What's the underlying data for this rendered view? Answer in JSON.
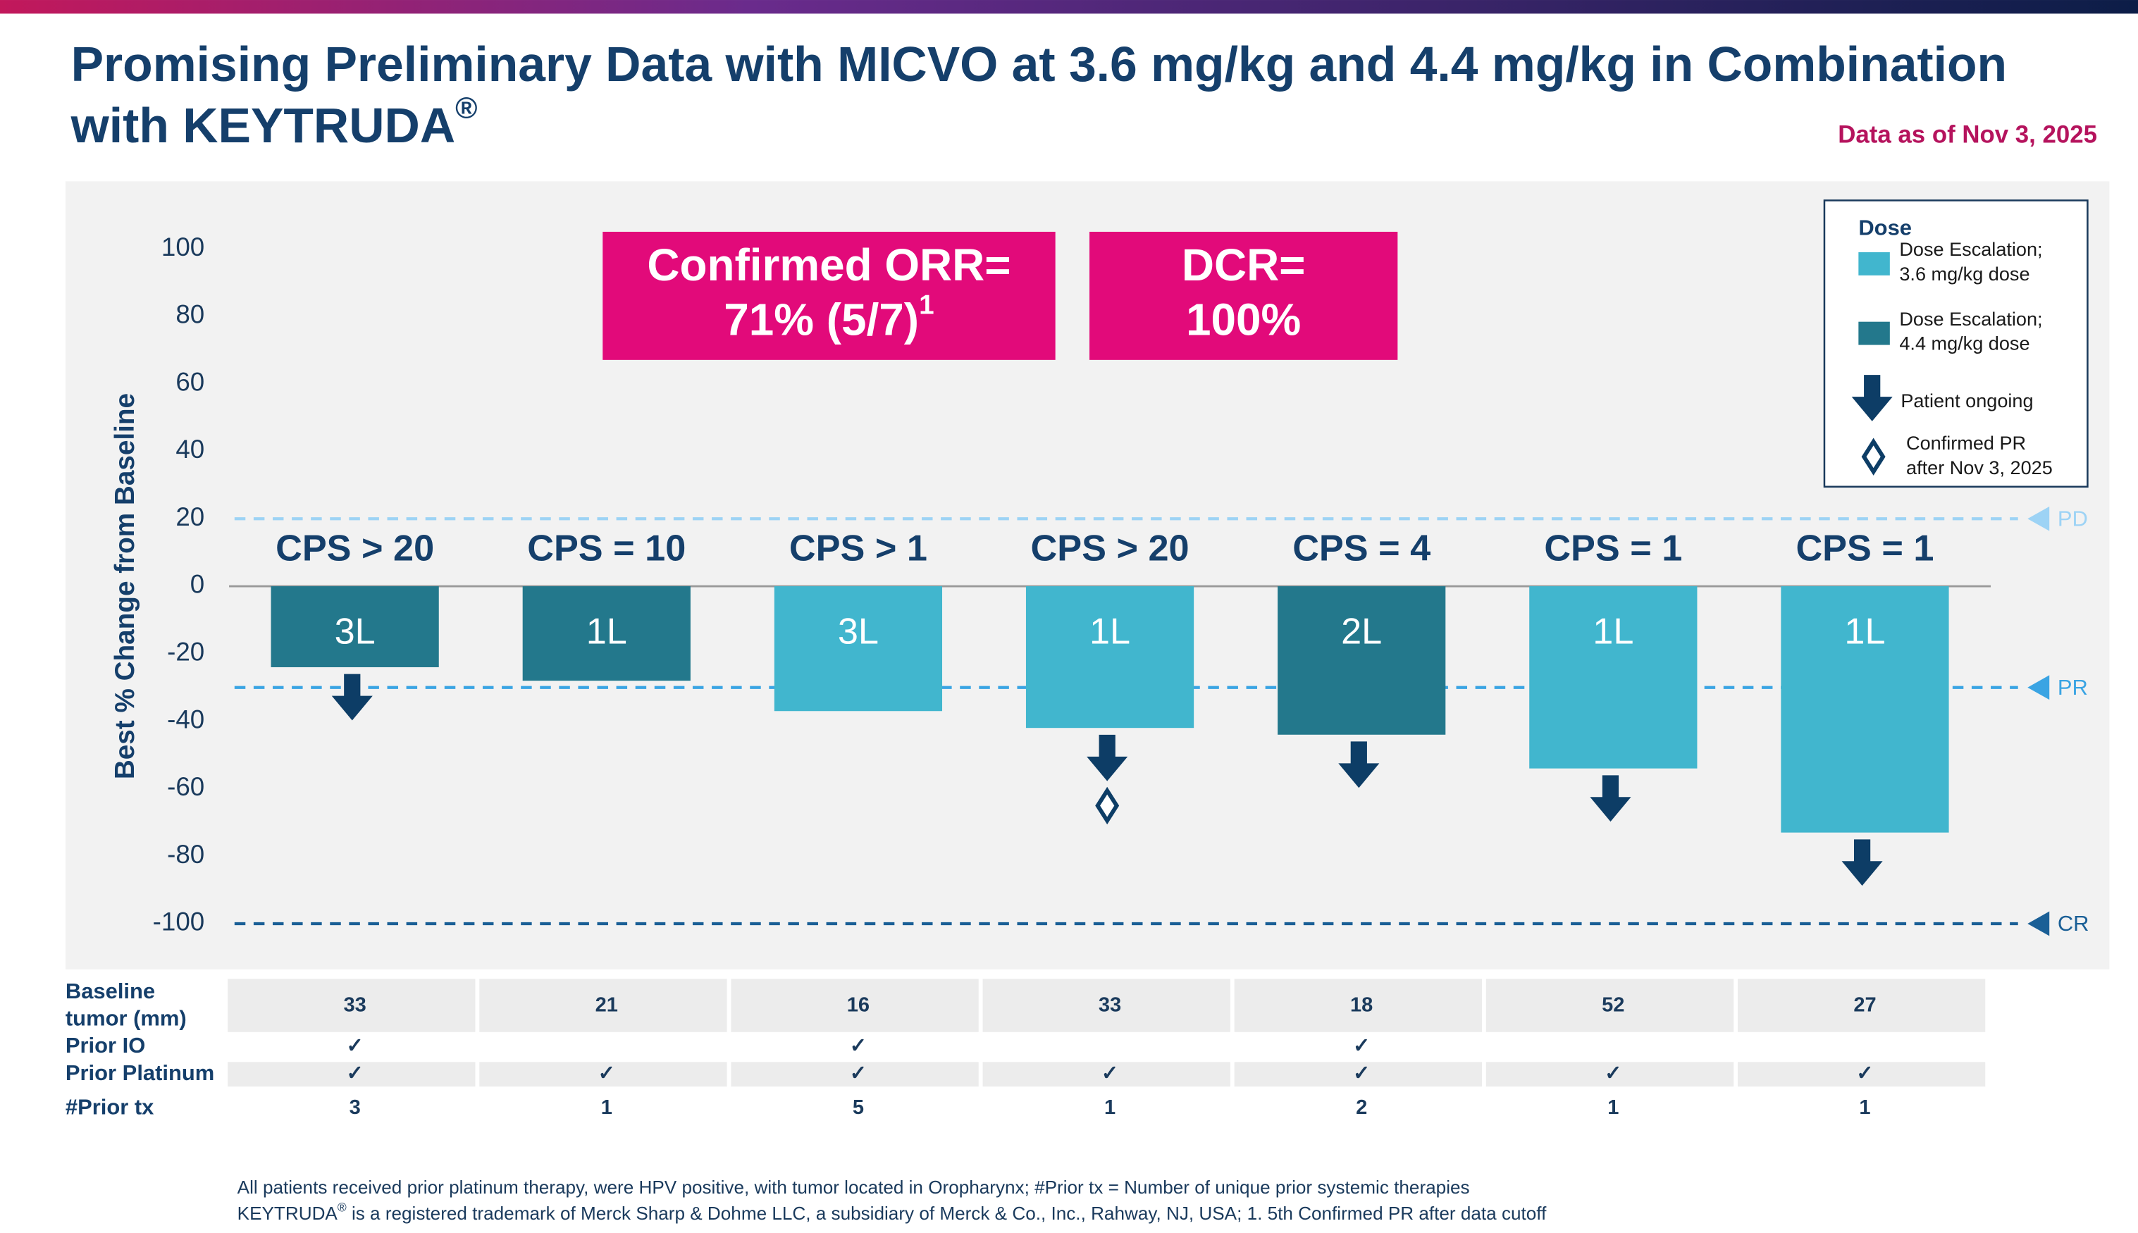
{
  "header": {
    "title": [
      "Promising Preliminary Data with MICVO at 3.6 mg/kg and 4.4 mg/kg in Combination",
      "with KEYTRUDA"
    ],
    "title_sup": "®",
    "date": "Data as of Nov 3, 2025"
  },
  "chart_data": {
    "type": "bar",
    "y_label": "Best % Change from Baseline",
    "categories": [
      "CPS > 20",
      "CPS = 10",
      "CPS > 1",
      "CPS > 20",
      "CPS = 4",
      "CPS = 1",
      "CPS = 1"
    ],
    "line_labels": [
      "3L",
      "1L",
      "3L",
      "1L",
      "2L",
      "1L",
      "1L"
    ],
    "values": [
      -24,
      -28,
      -37,
      -42,
      -44,
      -54,
      -73
    ],
    "bar_colors": [
      "#23788c",
      "#23788c",
      "#41b6ce",
      "#41b6ce",
      "#23788c",
      "#41b6ce",
      "#41b6ce"
    ],
    "ongoing": [
      true,
      false,
      false,
      true,
      true,
      true,
      true
    ],
    "confirmed_pr_after": [
      false,
      false,
      false,
      true,
      false,
      false,
      false
    ],
    "ylim": [
      -104,
      104
    ],
    "yticks": [
      -100,
      -80,
      -60,
      -40,
      -20,
      0,
      20,
      40,
      60,
      80,
      100
    ],
    "grid": false,
    "reference_lines": [
      {
        "value": 20,
        "label": "PD",
        "color": "#9dd3f5"
      },
      {
        "value": -30,
        "label": "PR",
        "color": "#3aa4e3"
      },
      {
        "value": -100,
        "label": "CR",
        "color": "#1a5f96"
      }
    ],
    "legend": {
      "title": "Dose",
      "items": [
        {
          "label": [
            "Dose Escalation;",
            "3.6 mg/kg dose"
          ],
          "color": "#41b6ce"
        },
        {
          "label": [
            "Dose Escalation;",
            "4.4 mg/kg dose"
          ],
          "color": "#23788c"
        },
        {
          "label": [
            "Patient ongoing"
          ],
          "marker": "arrow"
        },
        {
          "label": [
            "Confirmed PR",
            "after Nov 3, 2025"
          ],
          "marker": "diamond"
        }
      ]
    },
    "stat_boxes": [
      {
        "lines": [
          "Confirmed ORR=",
          "71% (5/7)"
        ],
        "sup": "1"
      },
      {
        "lines": [
          "DCR=",
          "100%"
        ]
      }
    ]
  },
  "table": {
    "row_labels": [
      [
        "Baseline",
        "tumor (mm)"
      ],
      [
        "Prior IO"
      ],
      [
        "Prior Platinum"
      ],
      [
        "#Prior tx"
      ]
    ],
    "rows": [
      [
        33,
        21,
        16,
        33,
        18,
        52,
        27
      ],
      [
        "✓",
        null,
        "✓",
        null,
        "✓",
        null,
        null
      ],
      [
        "✓",
        "✓",
        "✓",
        "✓",
        "✓",
        "✓",
        "✓"
      ],
      [
        3,
        1,
        5,
        1,
        2,
        1,
        1
      ]
    ]
  },
  "footnotes": {
    "line1": "All patients received prior platinum therapy, were HPV positive, with tumor located in Oropharynx; #Prior tx = Number of unique prior systemic therapies",
    "line2_start": "KEYTRUDA",
    "line2_sup": "®",
    "line2_end": " is a registered trademark of Merck Sharp & Dohme LLC, a subsidiary of Merck & Co., Inc., Rahway, NJ, USA; 1. 5th Confirmed PR after data cutoff"
  }
}
